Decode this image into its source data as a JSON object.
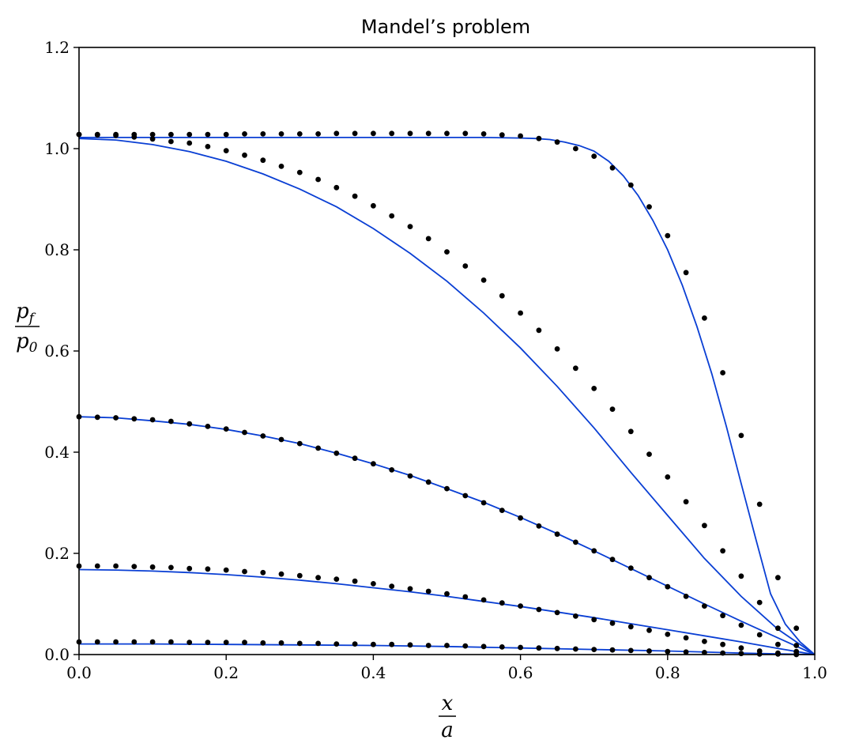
{
  "chart_data": {
    "type": "line",
    "title": "Mandel’s problem",
    "xlabel": {
      "num": "x",
      "den": "a"
    },
    "ylabel": {
      "num": "p",
      "num_sub": "f",
      "den": "p",
      "den_sub": "0"
    },
    "xlim": [
      0,
      1.0
    ],
    "ylim": [
      0,
      1.2
    ],
    "xticks": [
      "0.0",
      "0.2",
      "0.4",
      "0.6",
      "0.8",
      "1.0"
    ],
    "yticks": [
      "0.0",
      "0.2",
      "0.4",
      "0.6",
      "0.8",
      "1.0",
      "1.2"
    ],
    "grid": false,
    "line_color": "#0a3fd4",
    "marker_color": "#000000",
    "series": [
      {
        "line": {
          "x": [
            0,
            0.1,
            0.2,
            0.3,
            0.4,
            0.5,
            0.55,
            0.6,
            0.62,
            0.64,
            0.66,
            0.68,
            0.7,
            0.72,
            0.74,
            0.76,
            0.78,
            0.8,
            0.82,
            0.84,
            0.86,
            0.88,
            0.9,
            0.92,
            0.94,
            0.96,
            0.98,
            1.0
          ],
          "y": [
            1.022,
            1.022,
            1.022,
            1.022,
            1.022,
            1.022,
            1.022,
            1.021,
            1.02,
            1.018,
            1.013,
            1.006,
            0.995,
            0.975,
            0.946,
            0.907,
            0.858,
            0.8,
            0.73,
            0.648,
            0.555,
            0.45,
            0.338,
            0.228,
            0.12,
            0.06,
            0.025,
            0.0
          ]
        },
        "points": {
          "x": [
            0,
            0.025,
            0.05,
            0.075,
            0.1,
            0.125,
            0.15,
            0.175,
            0.2,
            0.225,
            0.25,
            0.275,
            0.3,
            0.325,
            0.35,
            0.375,
            0.4,
            0.425,
            0.45,
            0.475,
            0.5,
            0.525,
            0.55,
            0.575,
            0.6,
            0.625,
            0.65,
            0.675,
            0.7,
            0.725,
            0.75,
            0.775,
            0.8,
            0.825,
            0.85,
            0.875,
            0.9,
            0.925,
            0.95,
            0.975
          ],
          "y": [
            1.028,
            1.028,
            1.028,
            1.028,
            1.028,
            1.028,
            1.028,
            1.028,
            1.028,
            1.029,
            1.029,
            1.029,
            1.029,
            1.029,
            1.03,
            1.03,
            1.03,
            1.03,
            1.03,
            1.03,
            1.03,
            1.03,
            1.029,
            1.027,
            1.025,
            1.02,
            1.013,
            1.0,
            0.985,
            0.962,
            0.928,
            0.885,
            0.828,
            0.755,
            0.665,
            0.557,
            0.433,
            0.297,
            0.152,
            0.052
          ]
        }
      },
      {
        "line": {
          "x": [
            0,
            0.05,
            0.1,
            0.15,
            0.2,
            0.25,
            0.3,
            0.35,
            0.4,
            0.45,
            0.5,
            0.55,
            0.6,
            0.65,
            0.7,
            0.75,
            0.8,
            0.85,
            0.9,
            0.95,
            1.0
          ],
          "y": [
            1.02,
            1.017,
            1.008,
            0.994,
            0.975,
            0.95,
            0.92,
            0.885,
            0.842,
            0.793,
            0.738,
            0.675,
            0.606,
            0.53,
            0.448,
            0.36,
            0.275,
            0.19,
            0.115,
            0.05,
            0.0
          ]
        },
        "points": {
          "x": [
            0,
            0.025,
            0.05,
            0.075,
            0.1,
            0.125,
            0.15,
            0.175,
            0.2,
            0.225,
            0.25,
            0.275,
            0.3,
            0.325,
            0.35,
            0.375,
            0.4,
            0.425,
            0.45,
            0.475,
            0.5,
            0.525,
            0.55,
            0.575,
            0.6,
            0.625,
            0.65,
            0.675,
            0.7,
            0.725,
            0.75,
            0.775,
            0.8,
            0.825,
            0.85,
            0.875,
            0.9,
            0.925,
            0.95,
            0.975
          ],
          "y": [
            1.028,
            1.027,
            1.026,
            1.023,
            1.019,
            1.014,
            1.011,
            1.004,
            0.996,
            0.987,
            0.977,
            0.965,
            0.953,
            0.939,
            0.923,
            0.906,
            0.887,
            0.867,
            0.846,
            0.822,
            0.796,
            0.768,
            0.74,
            0.709,
            0.675,
            0.641,
            0.604,
            0.566,
            0.526,
            0.485,
            0.441,
            0.396,
            0.351,
            0.302,
            0.255,
            0.205,
            0.155,
            0.103,
            0.052,
            0.018
          ]
        }
      },
      {
        "line": {
          "x": [
            0,
            0.05,
            0.1,
            0.15,
            0.2,
            0.25,
            0.3,
            0.35,
            0.4,
            0.45,
            0.5,
            0.55,
            0.6,
            0.65,
            0.7,
            0.75,
            0.8,
            0.85,
            0.9,
            0.95,
            1.0
          ],
          "y": [
            0.47,
            0.468,
            0.462,
            0.455,
            0.445,
            0.432,
            0.417,
            0.398,
            0.377,
            0.354,
            0.328,
            0.301,
            0.271,
            0.239,
            0.205,
            0.17,
            0.135,
            0.1,
            0.066,
            0.033,
            0.0
          ]
        },
        "points": {
          "x": [
            0,
            0.025,
            0.05,
            0.075,
            0.1,
            0.125,
            0.15,
            0.175,
            0.2,
            0.225,
            0.25,
            0.275,
            0.3,
            0.325,
            0.35,
            0.375,
            0.4,
            0.425,
            0.45,
            0.475,
            0.5,
            0.525,
            0.55,
            0.575,
            0.6,
            0.625,
            0.65,
            0.675,
            0.7,
            0.725,
            0.75,
            0.775,
            0.8,
            0.825,
            0.85,
            0.875,
            0.9,
            0.925,
            0.95,
            0.975
          ],
          "y": [
            0.47,
            0.469,
            0.468,
            0.466,
            0.464,
            0.461,
            0.456,
            0.451,
            0.446,
            0.439,
            0.432,
            0.425,
            0.417,
            0.408,
            0.398,
            0.388,
            0.377,
            0.365,
            0.353,
            0.341,
            0.328,
            0.314,
            0.3,
            0.285,
            0.27,
            0.254,
            0.238,
            0.222,
            0.205,
            0.188,
            0.171,
            0.152,
            0.134,
            0.115,
            0.096,
            0.077,
            0.058,
            0.039,
            0.02,
            0.006
          ]
        }
      },
      {
        "line": {
          "x": [
            0,
            0.05,
            0.1,
            0.15,
            0.2,
            0.25,
            0.3,
            0.35,
            0.4,
            0.45,
            0.5,
            0.55,
            0.6,
            0.65,
            0.7,
            0.75,
            0.8,
            0.85,
            0.9,
            0.95,
            1.0
          ],
          "y": [
            0.168,
            0.167,
            0.165,
            0.162,
            0.158,
            0.153,
            0.147,
            0.14,
            0.132,
            0.124,
            0.115,
            0.105,
            0.095,
            0.084,
            0.073,
            0.061,
            0.049,
            0.037,
            0.025,
            0.012,
            0.0
          ]
        },
        "points": {
          "x": [
            0,
            0.025,
            0.05,
            0.075,
            0.1,
            0.125,
            0.15,
            0.175,
            0.2,
            0.225,
            0.25,
            0.275,
            0.3,
            0.325,
            0.35,
            0.375,
            0.4,
            0.425,
            0.45,
            0.475,
            0.5,
            0.525,
            0.55,
            0.575,
            0.6,
            0.625,
            0.65,
            0.675,
            0.7,
            0.725,
            0.75,
            0.775,
            0.8,
            0.825,
            0.85,
            0.875,
            0.9,
            0.925,
            0.95,
            0.975
          ],
          "y": [
            0.175,
            0.175,
            0.175,
            0.174,
            0.173,
            0.172,
            0.17,
            0.169,
            0.167,
            0.164,
            0.162,
            0.159,
            0.156,
            0.152,
            0.149,
            0.145,
            0.14,
            0.135,
            0.13,
            0.125,
            0.12,
            0.114,
            0.108,
            0.102,
            0.096,
            0.089,
            0.083,
            0.076,
            0.069,
            0.062,
            0.055,
            0.048,
            0.04,
            0.033,
            0.026,
            0.02,
            0.013,
            0.007,
            0.003,
            0.001
          ]
        }
      },
      {
        "line": {
          "x": [
            0,
            0.1,
            0.2,
            0.3,
            0.4,
            0.5,
            0.6,
            0.7,
            0.8,
            0.9,
            1.0
          ],
          "y": [
            0.021,
            0.021,
            0.02,
            0.019,
            0.018,
            0.016,
            0.013,
            0.01,
            0.007,
            0.003,
            0.0
          ]
        },
        "points": {
          "x": [
            0,
            0.025,
            0.05,
            0.075,
            0.1,
            0.125,
            0.15,
            0.175,
            0.2,
            0.225,
            0.25,
            0.275,
            0.3,
            0.325,
            0.35,
            0.375,
            0.4,
            0.425,
            0.45,
            0.475,
            0.5,
            0.525,
            0.55,
            0.575,
            0.6,
            0.625,
            0.65,
            0.675,
            0.7,
            0.725,
            0.75,
            0.775,
            0.8,
            0.825,
            0.85,
            0.875,
            0.9,
            0.925,
            0.95,
            0.975
          ],
          "y": [
            0.025,
            0.025,
            0.025,
            0.025,
            0.025,
            0.025,
            0.024,
            0.024,
            0.024,
            0.024,
            0.023,
            0.023,
            0.022,
            0.022,
            0.021,
            0.021,
            0.02,
            0.02,
            0.019,
            0.018,
            0.018,
            0.017,
            0.016,
            0.015,
            0.014,
            0.013,
            0.012,
            0.011,
            0.01,
            0.009,
            0.008,
            0.007,
            0.006,
            0.005,
            0.004,
            0.003,
            0.002,
            0.001,
            0.001,
            0.0
          ]
        }
      }
    ]
  }
}
